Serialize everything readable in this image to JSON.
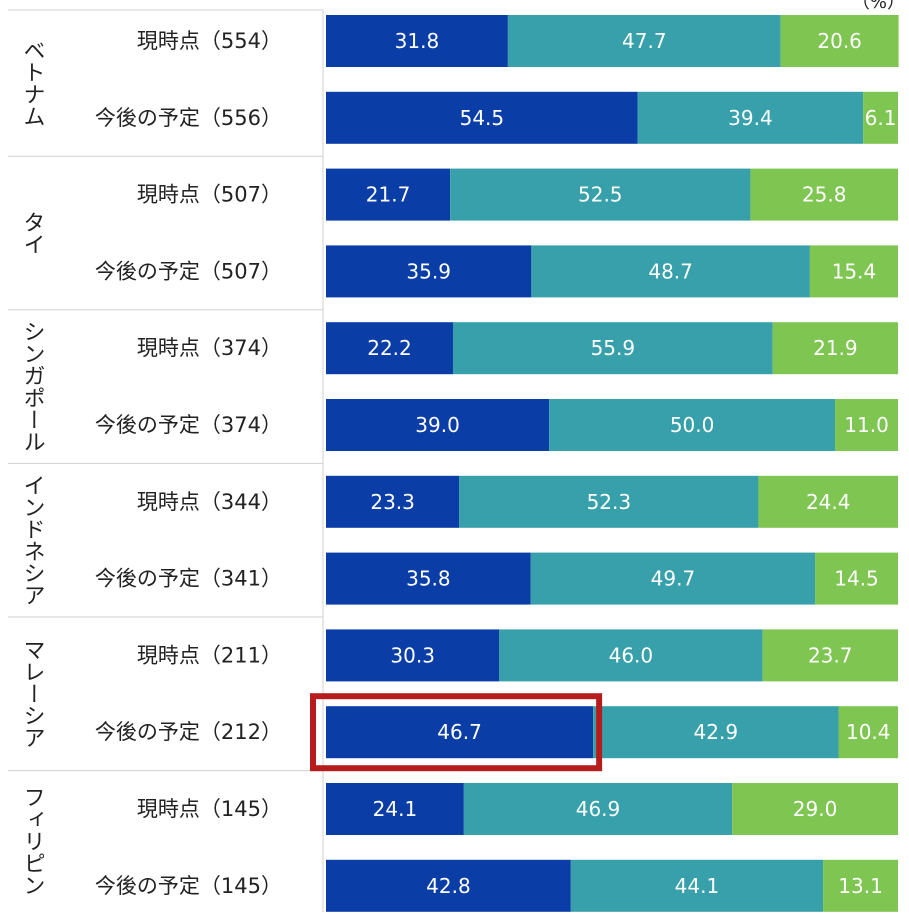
{
  "chart_data": {
    "type": "bar",
    "stacked": true,
    "orientation": "horizontal",
    "unit_label": "（%）",
    "xlim": [
      0,
      100
    ],
    "groups": [
      "ベトナム",
      "タイ",
      "シンガポール",
      "インドネシア",
      "マレーシア",
      "フィリピン"
    ],
    "categories": [
      "現時点（554）",
      "今後の予定（556）",
      "現時点（507）",
      "今後の予定（507）",
      "現時点（374）",
      "今後の予定（374）",
      "現時点（344）",
      "今後の予定（341）",
      "現時点（211）",
      "今後の予定（212）",
      "現時点（145）",
      "今後の予定（145）"
    ],
    "series": [
      {
        "color": "#0a3ea6",
        "values": [
          31.8,
          54.5,
          21.7,
          35.9,
          22.2,
          39.0,
          23.3,
          35.8,
          30.3,
          46.7,
          24.1,
          42.8
        ]
      },
      {
        "color": "#37a0aa",
        "values": [
          47.7,
          39.4,
          52.5,
          48.7,
          55.9,
          50.0,
          52.3,
          49.7,
          46.0,
          42.9,
          46.9,
          44.1
        ]
      },
      {
        "color": "#7ec552",
        "values": [
          20.6,
          6.1,
          25.8,
          15.4,
          21.9,
          11.0,
          24.4,
          14.5,
          23.7,
          10.4,
          29.0,
          13.1
        ]
      }
    ],
    "labels": [
      [
        "31.8",
        "54.5",
        "21.7",
        "35.9",
        "22.2",
        "39.0",
        "23.3",
        "35.8",
        "30.3",
        "46.7",
        "24.1",
        "42.8"
      ],
      [
        "47.7",
        "39.4",
        "52.5",
        "48.7",
        "55.9",
        "50.0",
        "52.3",
        "49.7",
        "46.0",
        "42.9",
        "46.9",
        "44.1"
      ],
      [
        "20.6",
        "6.1",
        "25.8",
        "15.4",
        "21.9",
        "11.0",
        "24.4",
        "14.5",
        "23.7",
        "10.4",
        "29.0",
        "13.1"
      ]
    ],
    "highlight": {
      "row": 9,
      "series": 0,
      "color": "#b71c1c"
    },
    "grid": false,
    "legend": "none"
  }
}
